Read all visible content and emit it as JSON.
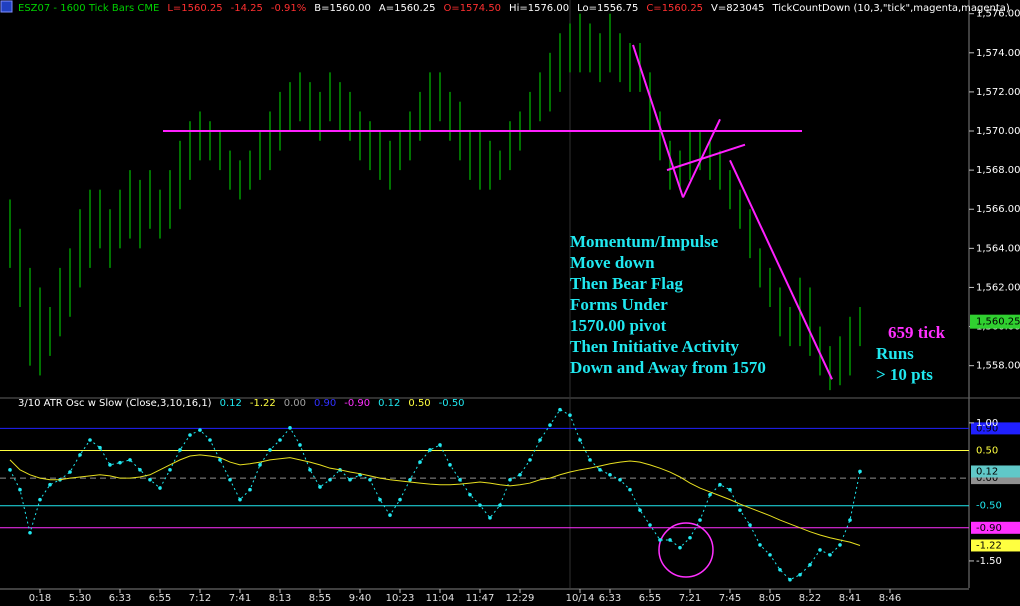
{
  "chart_data": [
    {
      "type": "range",
      "header": [
        {
          "text": "ESZ07 - 1600 Tick Bars  CME",
          "color": "#00d000"
        },
        {
          "text": "L=1560.25",
          "color": "#ff3030"
        },
        {
          "text": "-14.25",
          "color": "#ff3030"
        },
        {
          "text": "-0.91%",
          "color": "#ff3030"
        },
        {
          "text": "B=1560.00",
          "color": "#ffffff"
        },
        {
          "text": "A=1560.25",
          "color": "#ffffff"
        },
        {
          "text": "O=1574.50",
          "color": "#ff3030"
        },
        {
          "text": "Hi=1576.00",
          "color": "#ffffff"
        },
        {
          "text": "Lo=1556.75",
          "color": "#ffffff"
        },
        {
          "text": "C=1560.25",
          "color": "#ff3030"
        },
        {
          "text": "V=823045",
          "color": "#ffffff"
        },
        {
          "text": "TickCountDown  (10,3,\"tick\",magenta,magenta)",
          "color": "#ffffff"
        }
      ],
      "color": "#00b000",
      "high": [
        1566.5,
        1565,
        1563,
        1562,
        1561,
        1563,
        1564,
        1566,
        1567,
        1567,
        1566,
        1567,
        1568,
        1567.5,
        1568,
        1567,
        1568,
        1569.5,
        1570.5,
        1571,
        1570.5,
        1570,
        1569,
        1568.5,
        1569,
        1570,
        1571,
        1572,
        1572.5,
        1573,
        1572.5,
        1572,
        1573,
        1572.5,
        1572,
        1571,
        1570.5,
        1570,
        1569.5,
        1570,
        1571,
        1572,
        1573,
        1573,
        1572,
        1571.5,
        1570,
        1570,
        1569.5,
        1569,
        1570.5,
        1571,
        1572,
        1573,
        1574,
        1575,
        1575.5,
        1576,
        1575.5,
        1575,
        1576,
        1575,
        1574.5,
        1574.5,
        1573,
        1571,
        1569.5,
        1569,
        1570,
        1570,
        1569.5,
        1569,
        1568,
        1567,
        1566,
        1564,
        1563,
        1562,
        1561,
        1562.5,
        1562,
        1560,
        1559,
        1559.5,
        1560.5,
        1561,
        null,
        null,
        null
      ],
      "low": [
        1563,
        1561,
        1558,
        1557.5,
        1558.5,
        1559.5,
        1560.5,
        1562,
        1563,
        1564,
        1563,
        1564,
        1564.5,
        1564,
        1565,
        1564.5,
        1565,
        1566,
        1567.5,
        1568.5,
        1568.5,
        1568,
        1567,
        1566.5,
        1567,
        1567.5,
        1568,
        1569,
        1570,
        1570.5,
        1570,
        1569.5,
        1570.5,
        1570,
        1569.5,
        1568.5,
        1568,
        1567.5,
        1567,
        1568,
        1568.5,
        1569.5,
        1570,
        1570.5,
        1569.5,
        1568.5,
        1567.5,
        1567,
        1567,
        1567.5,
        1568,
        1569,
        1570,
        1570.5,
        1571,
        1572,
        1573,
        1573,
        1573,
        1572.5,
        1573,
        1572.5,
        1572,
        1572,
        1570,
        1568.5,
        1567,
        1567,
        1567.5,
        1568,
        1567.5,
        1567,
        1566,
        1565,
        1563.5,
        1562,
        1561,
        1559.5,
        1559,
        1559,
        1558.5,
        1557.5,
        1556.75,
        1557,
        1557.5,
        1559,
        null,
        null,
        null
      ],
      "ylim": [
        1556.5,
        1576.7
      ],
      "yticks": [
        {
          "value": 1558,
          "label": "1,558.00"
        },
        {
          "value": 1560,
          "label": "1,560.00"
        },
        {
          "value": 1562,
          "label": "1,562.00"
        },
        {
          "value": 1564,
          "label": "1,564.00"
        },
        {
          "value": 1566,
          "label": "1,566.00"
        },
        {
          "value": 1568,
          "label": "1,568.00"
        },
        {
          "value": 1570,
          "label": "1,570.00"
        },
        {
          "value": 1572,
          "label": "1,572.00"
        },
        {
          "value": 1574,
          "label": "1,574.00"
        },
        {
          "value": 1576,
          "label": "1,576.00"
        }
      ],
      "last": {
        "value": 1560.25,
        "label": "1,560.25"
      },
      "trendline_color": "#ff20ff",
      "trendlines": [
        {
          "points": [
            [
              15.3,
              1570
            ],
            [
              79.2,
              1570
            ]
          ]
        },
        {
          "points": [
            [
              62.3,
              1574.4
            ],
            [
              67.3,
              1566.6
            ]
          ]
        },
        {
          "points": [
            [
              67.3,
              1566.6
            ],
            [
              71,
              1570.6
            ]
          ]
        },
        {
          "points": [
            [
              65.7,
              1568
            ],
            [
              73.5,
              1569.3
            ]
          ]
        },
        {
          "points": [
            [
              72,
              1568.5
            ],
            [
              82.2,
              1557.3
            ]
          ]
        }
      ],
      "annotations": [
        {
          "color": "#20e8f0",
          "lines": [
            "Momentum/Impulse",
            "Move down",
            "Then Bear Flag",
            "Forms Under",
            "1570.00 pivot",
            "Then Initiative Activity",
            "Down and Away from 1570"
          ]
        },
        {
          "color": "#ff30ff",
          "lines": [
            "659 tick"
          ]
        },
        {
          "color": "#20e8f0",
          "lines": [
            "Runs",
            "> 10 pts"
          ]
        }
      ]
    },
    {
      "type": "line",
      "header": [
        {
          "text": "3/10 ATR Osc w Slow  (Close,3,10,16,1)",
          "color": "#ffffff"
        },
        {
          "text": "0.12",
          "color": "#20e8f0"
        },
        {
          "text": "-1.22",
          "color": "#ffff40"
        },
        {
          "text": "0.00",
          "color": "#a0a0a0"
        },
        {
          "text": "0.90",
          "color": "#3030ff"
        },
        {
          "text": "-0.90",
          "color": "#ff30ff"
        },
        {
          "text": "0.12",
          "color": "#20e8f0"
        },
        {
          "text": "0.50",
          "color": "#ffff40"
        },
        {
          "text": "-0.50",
          "color": "#20e8f0"
        }
      ],
      "categories": [
        null,
        null,
        null,
        "0:18",
        null,
        null,
        null,
        "5:30",
        null,
        null,
        null,
        "6:33",
        null,
        null,
        null,
        "6:55",
        null,
        null,
        null,
        "7:12",
        null,
        null,
        null,
        "7:41",
        null,
        null,
        null,
        "8:13",
        null,
        null,
        null,
        "8:55",
        null,
        null,
        null,
        "9:40",
        null,
        null,
        null,
        "10:23",
        null,
        null,
        null,
        "11:04",
        null,
        null,
        null,
        "11:47",
        null,
        null,
        null,
        "12:29",
        null,
        null,
        null,
        null,
        null,
        "10/14",
        null,
        null,
        "6:33",
        null,
        null,
        null,
        "6:55",
        null,
        null,
        null,
        "7:21",
        null,
        null,
        null,
        "7:45",
        null,
        null,
        null,
        "8:05",
        null,
        null,
        null,
        "8:22",
        null,
        null,
        null,
        "8:41",
        null,
        null,
        null,
        "8:46"
      ],
      "series": [
        {
          "color": "#20e8f0",
          "style": "dotted",
          "box_color": "#60c8c8",
          "values": [
            0.15,
            -0.21,
            -0.99,
            -0.39,
            -0.12,
            -0.03,
            0.11,
            0.42,
            0.69,
            0.55,
            0.24,
            0.28,
            0.33,
            0.15,
            -0.03,
            -0.18,
            0.15,
            0.51,
            0.78,
            0.87,
            0.69,
            0.33,
            -0.03,
            -0.39,
            -0.21,
            0.24,
            0.51,
            0.69,
            0.91,
            0.6,
            0.15,
            -0.16,
            -0.03,
            0.15,
            -0.03,
            0.06,
            -0.03,
            -0.39,
            -0.67,
            -0.39,
            -0.03,
            0.29,
            0.51,
            0.6,
            0.24,
            -0.03,
            -0.3,
            -0.49,
            -0.72,
            -0.49,
            -0.03,
            0.06,
            0.33,
            0.69,
            0.96,
            1.24,
            1.14,
            0.69,
            0.33,
            0.15,
            0.06,
            -0.03,
            -0.21,
            -0.58,
            -0.85,
            -1.12,
            -1.12,
            -1.26,
            -1.08,
            -0.76,
            -0.3,
            -0.12,
            -0.21,
            -0.58,
            -0.85,
            -1.21,
            -1.39,
            -1.66,
            -1.84,
            -1.75,
            -1.57,
            -1.3,
            -1.39,
            -1.21,
            -0.76,
            0.12,
            null,
            null,
            null
          ]
        },
        {
          "color": "#e8e020",
          "style": "solid",
          "box_color": "#ffff40",
          "values": [
            0.33,
            0.15,
            0.06,
            0,
            -0.03,
            -0.03,
            0,
            0.02,
            0.04,
            0.06,
            0.04,
            0,
            0,
            0.02,
            0.06,
            0.15,
            0.24,
            0.33,
            0.4,
            0.42,
            0.4,
            0.37,
            0.29,
            0.24,
            0.26,
            0.29,
            0.33,
            0.35,
            0.37,
            0.33,
            0.29,
            0.24,
            0.18,
            0.15,
            0.11,
            0.08,
            0.04,
            0,
            -0.03,
            -0.05,
            -0.07,
            -0.09,
            -0.11,
            -0.12,
            -0.12,
            -0.11,
            -0.09,
            -0.07,
            -0.09,
            -0.12,
            -0.14,
            -0.12,
            -0.09,
            -0.03,
            0,
            0.06,
            0.11,
            0.15,
            0.18,
            0.22,
            0.26,
            0.29,
            0.31,
            0.29,
            0.24,
            0.18,
            0.11,
            0.02,
            -0.09,
            -0.18,
            -0.25,
            -0.32,
            -0.39,
            -0.47,
            -0.54,
            -0.61,
            -0.68,
            -0.76,
            -0.83,
            -0.9,
            -0.97,
            -1.03,
            -1.08,
            -1.12,
            -1.16,
            -1.22,
            null,
            null,
            null
          ]
        }
      ],
      "ylim": [
        -1.99,
        1.36
      ],
      "yticks": [
        {
          "value": 1,
          "label": "1.00"
        },
        {
          "value": -1.5,
          "label": "-1.50"
        }
      ],
      "levels": [
        {
          "value": 0.9,
          "label": "0.90",
          "color": "#2020ff",
          "box": true
        },
        {
          "value": 0.5,
          "label": "0.50",
          "color": "#ffff40",
          "box": false
        },
        {
          "value": 0,
          "label": "0.00",
          "color": "#909090",
          "box": true,
          "dashed": true
        },
        {
          "value": -0.5,
          "label": "-0.50",
          "color": "#20e8f0",
          "box": false
        },
        {
          "value": -0.9,
          "label": "-0.90",
          "color": "#ff30ff",
          "box": true
        }
      ]
    }
  ]
}
